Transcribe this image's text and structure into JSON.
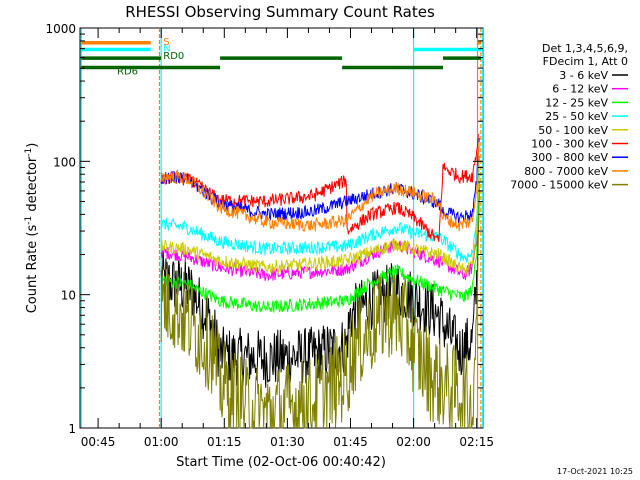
{
  "chart_data": {
    "type": "line",
    "title": "RHESSI Observing Summary Count Rates",
    "xlabel": "Start Time (02-Oct-06 00:40:42)",
    "ylabel_main": "Count Rate (s",
    "ylabel_sup1": "-1",
    "ylabel_mid": " detector",
    "ylabel_sup2": "-1",
    "ylabel_end": ")",
    "yscale": "log",
    "ylim": [
      1,
      1000
    ],
    "xlim_minutes": [
      40.7,
      136.5
    ],
    "x_ticks": [
      {
        "m": 45,
        "label": "00:45"
      },
      {
        "m": 60,
        "label": "01:00"
      },
      {
        "m": 75,
        "label": "01:15"
      },
      {
        "m": 90,
        "label": "01:30"
      },
      {
        "m": 105,
        "label": "01:45"
      },
      {
        "m": 120,
        "label": "02:00"
      },
      {
        "m": 135,
        "label": "02:15"
      }
    ],
    "y_ticks": [
      {
        "v": 1,
        "label": "1"
      },
      {
        "v": 10,
        "label": "10"
      },
      {
        "v": 100,
        "label": "100"
      },
      {
        "v": 1000,
        "label": "1000"
      }
    ],
    "legend_header": [
      "Det 1,3,4,5,6,9,",
      "FDecim 1, Att 0"
    ],
    "footer": "17-Oct-2021 10:25",
    "series": [
      {
        "name": "3 - 6 keV",
        "color": "#000000",
        "segs": [
          [
            [
              60,
              13
            ],
            [
              67,
              11
            ],
            [
              72,
              6
            ],
            [
              74,
              3.5
            ],
            [
              85,
              3.3
            ],
            [
              96,
              3.5
            ],
            [
              104,
              4.2
            ],
            [
              105,
              7
            ],
            [
              110,
              9
            ],
            [
              116,
              11
            ],
            [
              120,
              9.5
            ],
            [
              126,
              7
            ],
            [
              127,
              6
            ],
            [
              131,
              3.8
            ],
            [
              134,
              4.5
            ],
            [
              135,
              12
            ],
            [
              135.6,
              70
            ]
          ]
        ]
      },
      {
        "name": "6 - 12 keV",
        "color": "#ff00ff",
        "segs": [
          [
            [
              60,
              21
            ],
            [
              64,
              20
            ],
            [
              67,
              19
            ],
            [
              74,
              16
            ],
            [
              85,
              14
            ],
            [
              104,
              15.5
            ],
            [
              110,
              20
            ],
            [
              116,
              24
            ],
            [
              120,
              21
            ],
            [
              126,
              18
            ],
            [
              132,
              14
            ],
            [
              134,
              16
            ],
            [
              135,
              28
            ],
            [
              135.6,
              110
            ]
          ]
        ]
      },
      {
        "name": "12 - 25 keV",
        "color": "#00ff00",
        "segs": [
          [
            [
              60,
              13
            ],
            [
              66,
              12
            ],
            [
              74,
              9
            ],
            [
              85,
              8
            ],
            [
              104,
              9
            ],
            [
              110,
              12.5
            ],
            [
              116,
              15
            ],
            [
              120,
              13
            ],
            [
              126,
              11
            ],
            [
              132,
              9.5
            ],
            [
              134,
              11
            ],
            [
              135,
              22
            ],
            [
              135.6,
              80
            ]
          ]
        ]
      },
      {
        "name": "25 - 50 keV",
        "color": "#00ffff",
        "segs": [
          [
            [
              60,
              34
            ],
            [
              66,
              32
            ],
            [
              74,
              25
            ],
            [
              85,
              22
            ],
            [
              104,
              23
            ],
            [
              110,
              28
            ],
            [
              116,
              32
            ],
            [
              120,
              29
            ],
            [
              126,
              27
            ],
            [
              132,
              19
            ],
            [
              134,
              20
            ],
            [
              135,
              40
            ],
            [
              135.6,
              100
            ]
          ]
        ]
      },
      {
        "name": "50 - 100 keV",
        "color": "#cccc00",
        "segs": [
          [
            [
              60,
              23
            ],
            [
              66,
              22
            ],
            [
              74,
              18
            ],
            [
              85,
              16
            ],
            [
              104,
              18
            ],
            [
              110,
              21
            ],
            [
              116,
              24
            ],
            [
              120,
              22
            ],
            [
              126,
              20
            ],
            [
              132,
              15
            ],
            [
              134,
              17
            ],
            [
              135,
              30
            ],
            [
              135.6,
              90
            ]
          ]
        ]
      },
      {
        "name": "100 - 300 keV",
        "color": "#ff0000",
        "segs": [
          [
            [
              60,
              73
            ],
            [
              62,
              75
            ],
            [
              67,
              72
            ],
            [
              74,
              51
            ],
            [
              85,
              50
            ],
            [
              96,
              55
            ],
            [
              104,
              72
            ],
            [
              104.2,
              30
            ],
            [
              110,
              40
            ],
            [
              116,
              45
            ],
            [
              120,
              38
            ],
            [
              126,
              25
            ],
            [
              127,
              90
            ],
            [
              131,
              77
            ],
            [
              134,
              78
            ],
            [
              135,
              120
            ],
            [
              135.4,
              160
            ]
          ]
        ]
      },
      {
        "name": "300 - 800 keV",
        "color": "#0000ff",
        "segs": [
          [
            [
              60,
              75
            ],
            [
              64,
              76
            ],
            [
              67,
              71
            ],
            [
              74,
              48
            ],
            [
              85,
              40
            ],
            [
              96,
              42
            ],
            [
              104,
              50
            ],
            [
              110,
              57
            ],
            [
              116,
              63
            ],
            [
              120,
              57
            ],
            [
              126,
              48
            ],
            [
              127,
              42
            ],
            [
              131,
              38
            ],
            [
              134,
              40
            ],
            [
              135,
              70
            ],
            [
              135.6,
              150
            ]
          ]
        ]
      },
      {
        "name": "800 - 7000 keV",
        "color": "#ff8000",
        "segs": [
          [
            [
              60,
              76
            ],
            [
              64,
              77
            ],
            [
              67,
              72
            ],
            [
              74,
              45
            ],
            [
              85,
              35
            ],
            [
              96,
              33
            ],
            [
              104,
              36
            ],
            [
              110,
              55
            ],
            [
              116,
              63
            ],
            [
              120,
              58
            ],
            [
              126,
              50
            ],
            [
              127,
              38
            ],
            [
              131,
              33
            ],
            [
              134,
              36
            ],
            [
              135,
              65
            ],
            [
              135.6,
              140
            ]
          ]
        ]
      },
      {
        "name": "7000 - 15000 keV",
        "color": "#808000",
        "segs": [
          [
            [
              60,
              9
            ],
            [
              64,
              8
            ],
            [
              66,
              6.5
            ],
            [
              72,
              4
            ],
            [
              74,
              2.2
            ],
            [
              80,
              1.5
            ],
            [
              85,
              1.3
            ],
            [
              96,
              1.6
            ],
            [
              104,
              2.5
            ],
            [
              106,
              4
            ],
            [
              110,
              5.5
            ],
            [
              114,
              7.5
            ],
            [
              118,
              6
            ],
            [
              120,
              4
            ],
            [
              124,
              2.5
            ],
            [
              128,
              2
            ],
            [
              132,
              1.8
            ],
            [
              134,
              1.2
            ],
            [
              135,
              9
            ],
            [
              135.6,
              50
            ]
          ]
        ]
      }
    ],
    "flags": [
      {
        "name": "S",
        "color": "#ff8000",
        "level": 775,
        "segs": [
          [
            41,
            57.5
          ],
          [
            135.2,
            136
          ]
        ]
      },
      {
        "name": "N",
        "color": "#00ffff",
        "level": 690,
        "segs": [
          [
            41,
            57.5
          ],
          [
            120,
            136
          ]
        ]
      },
      {
        "name": "RD0",
        "color": "#006400",
        "level": 595,
        "segs": [
          [
            41,
            60
          ],
          [
            74,
            103
          ],
          [
            127,
            136
          ]
        ]
      },
      {
        "name": "RD6",
        "color": "#006400",
        "level": 505,
        "segs": [
          [
            41,
            74
          ],
          [
            103,
            127
          ]
        ]
      }
    ],
    "vlines": [
      {
        "m": 41,
        "color": "#00ffff",
        "dash": false
      },
      {
        "m": 60,
        "color": "#00ffff",
        "dash": false
      },
      {
        "m": 59.6,
        "color": "#ff8000",
        "dash": true
      },
      {
        "m": 120,
        "color": "#00ffff",
        "dash": false
      },
      {
        "m": 135.2,
        "color": "#ff8000",
        "dash": false
      },
      {
        "m": 136.4,
        "color": "#00ffff",
        "dash": false
      },
      {
        "m": 136.0,
        "color": "#ff8000",
        "dash": true
      }
    ]
  }
}
